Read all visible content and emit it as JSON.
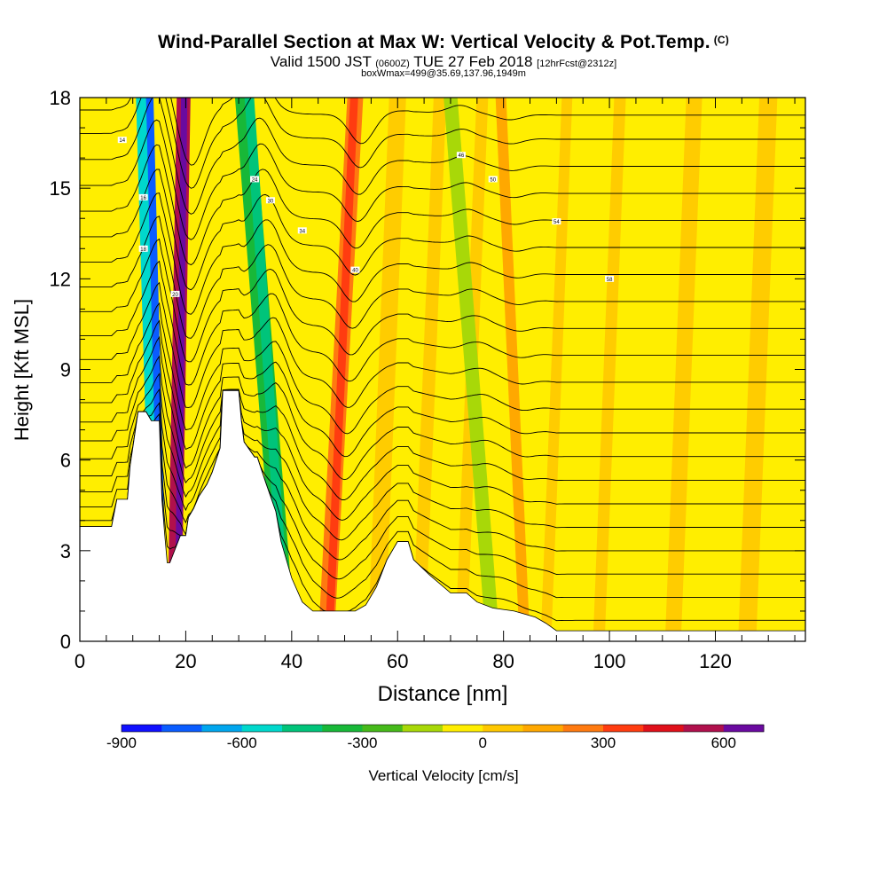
{
  "header": {
    "title": "Wind-Parallel Section at Max W: Vertical Velocity & Pot.Temp.",
    "copyright": "(C)",
    "valid_prefix": "Valid 1500 JST",
    "valid_utc": "(0600Z)",
    "valid_date": "TUE 27 Feb 2018",
    "forecast": "[12hrFcst@2312z]",
    "box_info": "boxWmax=499@35.69,137.96,1949m"
  },
  "chart_data": {
    "type": "heatmap",
    "xlabel": "Distance [nm]",
    "ylabel": "Height [Kft MSL]",
    "xlim": [
      0,
      137
    ],
    "ylim": [
      0,
      18
    ],
    "x_ticks": [
      "0",
      "20",
      "40",
      "60",
      "80",
      "100",
      "120"
    ],
    "y_ticks": [
      "0",
      "3",
      "6",
      "9",
      "12",
      "15",
      "18"
    ],
    "colorbar": {
      "label": "Vertical Velocity [cm/s]",
      "tick_labels": [
        "-900",
        "-600",
        "-300",
        "0",
        "300",
        "600"
      ],
      "levels": [
        -900,
        -800,
        -700,
        -600,
        -500,
        -400,
        -300,
        -200,
        -100,
        0,
        100,
        200,
        300,
        400,
        500,
        600,
        700
      ],
      "colors": [
        "#1010ff",
        "#0a5cff",
        "#00a6ee",
        "#00d8cc",
        "#00c47a",
        "#18b838",
        "#46ba1a",
        "#a8d808",
        "#ffee00",
        "#ffc800",
        "#ffa800",
        "#ff7a10",
        "#ff3c10",
        "#e0101a",
        "#b0104c",
        "#6a0aa0"
      ]
    },
    "terrain_profile": {
      "x_nm": [
        0,
        6,
        7,
        9,
        9.5,
        11,
        12.5,
        13.5,
        15,
        15.5,
        16,
        16.5,
        17,
        19,
        20,
        20.5,
        21.5,
        22.5,
        24,
        25,
        26.5,
        27,
        30,
        30.5,
        31,
        33,
        33.5,
        35,
        37,
        38,
        40,
        42,
        44,
        46,
        50,
        52,
        54,
        56,
        58,
        60,
        62,
        63,
        66,
        70,
        73,
        75,
        78,
        82,
        86,
        88,
        90,
        92,
        95,
        100,
        105,
        110,
        115,
        120,
        125,
        130,
        135,
        137
      ],
      "height_kft": [
        3.8,
        3.8,
        4.7,
        4.7,
        5.8,
        7.6,
        7.6,
        7.3,
        7.3,
        4.7,
        3.6,
        2.6,
        2.6,
        3.5,
        3.5,
        4.1,
        4.4,
        4.8,
        5.2,
        5.6,
        6.4,
        8.3,
        8.3,
        7.3,
        6.6,
        6.1,
        6.1,
        5.3,
        4.3,
        3.3,
        2.1,
        1.3,
        1.0,
        1.0,
        1.0,
        1.0,
        1.2,
        1.8,
        2.7,
        3.3,
        3.3,
        2.7,
        2.2,
        1.6,
        1.6,
        1.3,
        1.1,
        1.0,
        0.8,
        0.6,
        0.35,
        0.35,
        0.35,
        0.35,
        0.35,
        0.35,
        0.35,
        0.35,
        0.35,
        0.35,
        0.35,
        0.35
      ]
    },
    "wave_bands": [
      {
        "x_bottom_nm": 14.8,
        "x_top_nm": 11.8,
        "w_cm_s": -520,
        "width_nm": 2.4
      },
      {
        "x_bottom_nm": 15.8,
        "x_top_nm": 13.2,
        "w_cm_s": -780,
        "width_nm": 1.4
      },
      {
        "x_bottom_nm": 17.8,
        "x_top_nm": 19.6,
        "w_cm_s": 560,
        "width_nm": 2.6
      },
      {
        "x_bottom_nm": 18.5,
        "x_top_nm": 19.7,
        "w_cm_s": 650,
        "width_nm": 1.2
      },
      {
        "x_bottom_nm": 39.0,
        "x_top_nm": 31.0,
        "w_cm_s": -330,
        "width_nm": 3.4
      },
      {
        "x_bottom_nm": 39.0,
        "x_top_nm": 32.0,
        "w_cm_s": -480,
        "width_nm": 1.8
      },
      {
        "x_bottom_nm": 46.5,
        "x_top_nm": 52.0,
        "w_cm_s": 250,
        "width_nm": 3.0
      },
      {
        "x_bottom_nm": 47.0,
        "x_top_nm": 51.8,
        "w_cm_s": 380,
        "width_nm": 1.5
      },
      {
        "x_bottom_nm": 78.0,
        "x_top_nm": 70.0,
        "w_cm_s": -170,
        "width_nm": 2.6
      },
      {
        "x_bottom_nm": 84.0,
        "x_top_nm": 79.5,
        "w_cm_s": 120,
        "width_nm": 2.0
      }
    ],
    "theta_contours": {
      "base_height_kft": [
        0.4,
        1.2,
        2.0,
        2.8,
        3.6,
        4.4,
        5.2,
        6.0,
        6.8,
        7.6,
        8.5,
        9.4,
        10.3,
        11.2,
        12.1,
        13.0,
        13.9,
        14.8,
        15.7,
        16.6,
        17.4
      ],
      "inline_labels": [
        "14",
        "16",
        "18",
        "20",
        "24",
        "30",
        "34",
        "40",
        "46",
        "50",
        "54",
        "58"
      ]
    }
  }
}
